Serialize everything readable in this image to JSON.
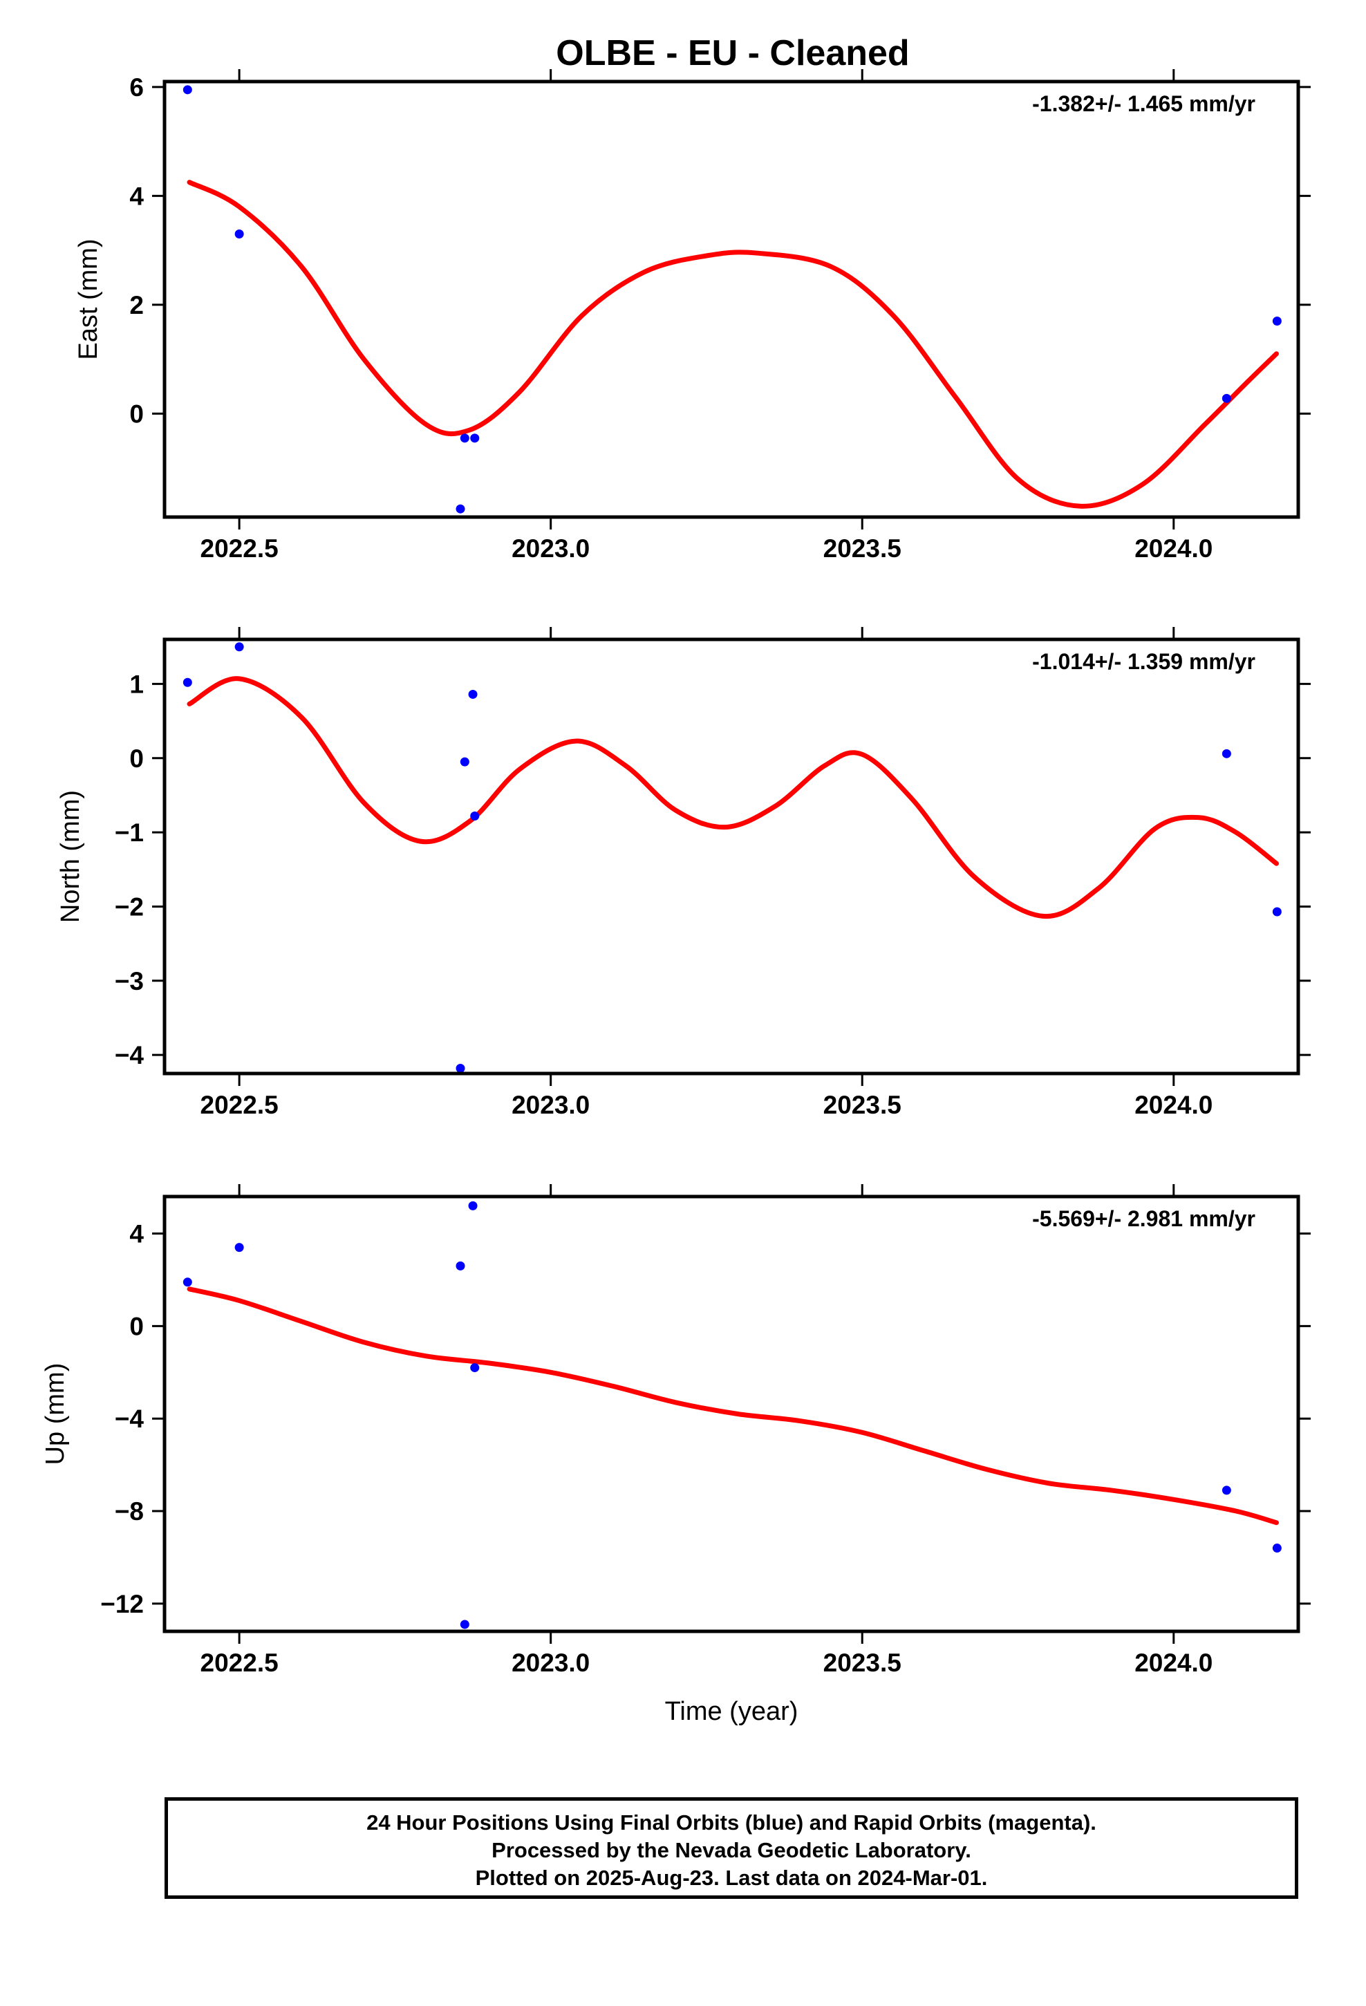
{
  "figure_title": "OLBE  - EU - Cleaned",
  "footer": {
    "line1": "24 Hour Positions Using Final Orbits (blue) and Rapid Orbits (magenta).",
    "line2": "Processed by the Nevada Geodetic Laboratory.",
    "line3": "Plotted on 2025-Aug-23. Last data on 2024-Mar-01."
  },
  "colors": {
    "points": "#0000ff",
    "fit_line": "#ff0000",
    "frame": "#000000"
  },
  "chart_data": [
    {
      "type": "scatter",
      "panel": "east",
      "ylabel": "East (mm)",
      "xlabel": "",
      "rate_label": "-1.382+/- 1.465 mm/yr",
      "xlim": [
        2022.38,
        2024.2
      ],
      "ylim": [
        -1.9,
        6.1
      ],
      "xticks": [
        2022.5,
        2023.0,
        2023.5,
        2024.0
      ],
      "xtick_labels": [
        "2022.5",
        "2023.0",
        "2023.5",
        "2024.0"
      ],
      "yticks": [
        0,
        2,
        4,
        6
      ],
      "ytick_labels": [
        "0",
        "2",
        "4",
        "6"
      ],
      "series": [
        {
          "kind": "points",
          "x": [
            2022.417,
            2022.5,
            2022.855,
            2022.862,
            2022.878,
            2024.085,
            2024.166
          ],
          "y": [
            5.95,
            3.3,
            -1.75,
            -0.45,
            -0.45,
            0.28,
            1.7
          ]
        },
        {
          "kind": "fit",
          "x": [
            2022.42,
            2022.5,
            2022.6,
            2022.7,
            2022.8,
            2022.87,
            2022.95,
            2023.05,
            2023.15,
            2023.25,
            2023.33,
            2023.45,
            2023.55,
            2023.65,
            2023.75,
            2023.85,
            2023.95,
            2024.05,
            2024.12,
            2024.165
          ],
          "y": [
            4.25,
            3.8,
            2.7,
            1.0,
            -0.2,
            -0.3,
            0.4,
            1.8,
            2.6,
            2.9,
            2.95,
            2.7,
            1.8,
            0.3,
            -1.2,
            -1.7,
            -1.3,
            -0.2,
            0.6,
            1.1
          ]
        }
      ]
    },
    {
      "type": "scatter",
      "panel": "north",
      "ylabel": "North (mm)",
      "xlabel": "",
      "rate_label": "-1.014+/- 1.359 mm/yr",
      "xlim": [
        2022.38,
        2024.2
      ],
      "ylim": [
        -4.25,
        1.6
      ],
      "xticks": [
        2022.5,
        2023.0,
        2023.5,
        2024.0
      ],
      "xtick_labels": [
        "2022.5",
        "2023.0",
        "2023.5",
        "2024.0"
      ],
      "yticks": [
        -4,
        -3,
        -2,
        -1,
        0,
        1
      ],
      "ytick_labels": [
        "−4",
        "−3",
        "−2",
        "−1",
        "0",
        "1"
      ],
      "series": [
        {
          "kind": "points",
          "x": [
            2022.417,
            2022.5,
            2022.862,
            2022.875,
            2022.878,
            2022.855,
            2024.085,
            2024.166
          ],
          "y": [
            1.02,
            1.5,
            -0.05,
            0.86,
            -0.78,
            -4.18,
            0.06,
            -2.07
          ]
        },
        {
          "kind": "fit",
          "x": [
            2022.42,
            2022.5,
            2022.6,
            2022.7,
            2022.79,
            2022.87,
            2022.95,
            2023.04,
            2023.12,
            2023.2,
            2023.28,
            2023.36,
            2023.44,
            2023.5,
            2023.58,
            2023.68,
            2023.79,
            2023.88,
            2023.97,
            2024.04,
            2024.1,
            2024.165
          ],
          "y": [
            0.73,
            1.07,
            0.55,
            -0.6,
            -1.12,
            -0.85,
            -0.15,
            0.23,
            -0.1,
            -0.7,
            -0.93,
            -0.65,
            -0.1,
            0.05,
            -0.55,
            -1.6,
            -2.13,
            -1.75,
            -0.95,
            -0.8,
            -1.0,
            -1.42
          ]
        }
      ]
    },
    {
      "type": "scatter",
      "panel": "up",
      "ylabel": "Up (mm)",
      "xlabel": "Time (year)",
      "rate_label": "-5.569+/- 2.981 mm/yr",
      "xlim": [
        2022.38,
        2024.2
      ],
      "ylim": [
        -13.2,
        5.6
      ],
      "xticks": [
        2022.5,
        2023.0,
        2023.5,
        2024.0
      ],
      "xtick_labels": [
        "2022.5",
        "2023.0",
        "2023.5",
        "2024.0"
      ],
      "yticks": [
        -12,
        -8,
        -4,
        0,
        4
      ],
      "ytick_labels": [
        "−12",
        "−8",
        "−4",
        "0",
        "4"
      ],
      "series": [
        {
          "kind": "points",
          "x": [
            2022.417,
            2022.5,
            2022.855,
            2022.875,
            2022.878,
            2022.862,
            2024.085,
            2024.166
          ],
          "y": [
            1.9,
            3.4,
            2.6,
            5.2,
            -1.8,
            -12.9,
            -7.1,
            -9.6
          ]
        },
        {
          "kind": "fit",
          "x": [
            2022.42,
            2022.5,
            2022.6,
            2022.7,
            2022.8,
            2022.9,
            2023.0,
            2023.1,
            2023.2,
            2023.3,
            2023.4,
            2023.5,
            2023.6,
            2023.7,
            2023.8,
            2023.9,
            2024.0,
            2024.1,
            2024.165
          ],
          "y": [
            1.6,
            1.1,
            0.2,
            -0.7,
            -1.3,
            -1.6,
            -2.0,
            -2.6,
            -3.3,
            -3.8,
            -4.1,
            -4.6,
            -5.4,
            -6.2,
            -6.8,
            -7.1,
            -7.5,
            -8.0,
            -8.5
          ]
        }
      ]
    }
  ]
}
